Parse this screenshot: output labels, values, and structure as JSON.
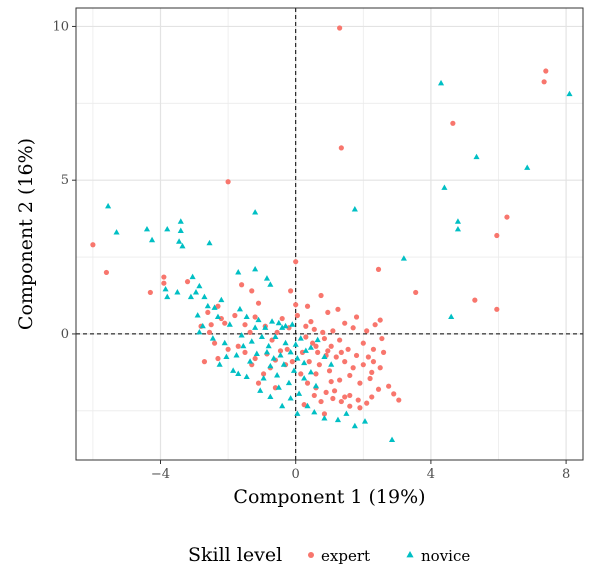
{
  "chart_data": {
    "type": "scatter",
    "title": "",
    "xlabel": "Component 1 (19%)",
    "ylabel": "Component 2 (16%)",
    "xlim": [
      -6.5,
      8.5
    ],
    "ylim": [
      -4.1,
      10.6
    ],
    "x_ticks": [
      -4,
      0,
      4,
      8
    ],
    "y_ticks": [
      0,
      5,
      10
    ],
    "x_tick_labels": [
      "−4",
      "0",
      "4",
      "8"
    ],
    "y_tick_labels": [
      "0",
      "5",
      "10"
    ],
    "grid": true,
    "reference_lines": {
      "x": 0,
      "y": 0,
      "style": "dashed"
    },
    "legend": {
      "title": "Skill level",
      "placement": "bottom"
    },
    "series": [
      {
        "name": "expert",
        "color": "#F8766D",
        "marker": "circle",
        "points": [
          [
            1.3,
            9.95
          ],
          [
            7.4,
            8.55
          ],
          [
            7.35,
            8.2
          ],
          [
            4.65,
            6.85
          ],
          [
            1.35,
            6.05
          ],
          [
            -2.0,
            4.95
          ],
          [
            6.25,
            3.8
          ],
          [
            5.95,
            3.2
          ],
          [
            -6.0,
            2.9
          ],
          [
            -5.6,
            2.0
          ],
          [
            2.45,
            2.1
          ],
          [
            3.55,
            1.35
          ],
          [
            5.3,
            1.1
          ],
          [
            5.95,
            0.8
          ],
          [
            -4.3,
            1.35
          ],
          [
            -3.9,
            1.85
          ],
          [
            -3.9,
            1.65
          ],
          [
            -3.2,
            1.7
          ],
          [
            -1.6,
            1.6
          ],
          [
            -1.3,
            1.4
          ],
          [
            -1.1,
            1.0
          ],
          [
            0.0,
            2.35
          ],
          [
            -0.15,
            1.4
          ],
          [
            0.0,
            0.95
          ],
          [
            0.35,
            0.9
          ],
          [
            0.75,
            1.25
          ],
          [
            0.95,
            0.7
          ],
          [
            1.25,
            0.8
          ],
          [
            1.45,
            0.35
          ],
          [
            1.7,
            0.2
          ],
          [
            2.1,
            0.1
          ],
          [
            2.35,
            0.3
          ],
          [
            2.5,
            0.45
          ],
          [
            2.55,
            -0.15
          ],
          [
            2.3,
            -0.5
          ],
          [
            2.0,
            -0.3
          ],
          [
            1.8,
            -0.7
          ],
          [
            1.55,
            -0.5
          ],
          [
            1.3,
            -0.2
          ],
          [
            1.05,
            -0.4
          ],
          [
            0.85,
            -0.15
          ],
          [
            0.65,
            -0.6
          ],
          [
            0.5,
            -0.3
          ],
          [
            0.3,
            -0.1
          ],
          [
            0.55,
            0.15
          ],
          [
            0.8,
            0.05
          ],
          [
            1.1,
            0.1
          ],
          [
            0.2,
            -0.6
          ],
          [
            0.4,
            -0.9
          ],
          [
            0.7,
            -1.0
          ],
          [
            1.0,
            -1.2
          ],
          [
            1.3,
            -1.5
          ],
          [
            1.6,
            -1.35
          ],
          [
            1.9,
            -1.6
          ],
          [
            2.2,
            -1.45
          ],
          [
            2.45,
            -1.8
          ],
          [
            2.75,
            -1.7
          ],
          [
            2.9,
            -1.95
          ],
          [
            3.05,
            -2.15
          ],
          [
            2.5,
            -1.1
          ],
          [
            2.3,
            -0.9
          ],
          [
            2.0,
            -1.0
          ],
          [
            1.7,
            -1.1
          ],
          [
            1.45,
            -0.9
          ],
          [
            1.2,
            -0.75
          ],
          [
            0.9,
            -0.7
          ],
          [
            0.6,
            -1.3
          ],
          [
            0.35,
            -1.6
          ],
          [
            0.6,
            -1.75
          ],
          [
            0.9,
            -1.9
          ],
          [
            1.1,
            -2.1
          ],
          [
            1.35,
            -2.2
          ],
          [
            1.6,
            -2.35
          ],
          [
            1.85,
            -2.15
          ],
          [
            2.1,
            -2.25
          ],
          [
            1.45,
            -2.05
          ],
          [
            1.15,
            -1.85
          ],
          [
            1.6,
            -2.0
          ],
          [
            1.9,
            -2.4
          ],
          [
            2.25,
            -2.05
          ],
          [
            -2.3,
            0.9
          ],
          [
            -2.6,
            0.7
          ],
          [
            -2.2,
            0.5
          ],
          [
            -2.5,
            0.3
          ],
          [
            -2.1,
            0.35
          ],
          [
            -1.8,
            0.6
          ],
          [
            -1.5,
            0.3
          ],
          [
            -1.2,
            0.55
          ],
          [
            -0.9,
            0.25
          ],
          [
            -2.8,
            0.25
          ],
          [
            -2.4,
            -0.3
          ],
          [
            -2.0,
            -0.5
          ],
          [
            -1.7,
            -0.4
          ],
          [
            -2.7,
            -0.9
          ],
          [
            -2.3,
            -0.8
          ],
          [
            -1.1,
            -1.6
          ],
          [
            -0.95,
            -1.3
          ],
          [
            -0.6,
            -1.75
          ],
          [
            -0.45,
            -0.55
          ],
          [
            -0.25,
            -0.5
          ],
          [
            -0.1,
            -0.9
          ],
          [
            0.15,
            -1.3
          ],
          [
            -0.3,
            -1.0
          ],
          [
            -0.6,
            -0.85
          ],
          [
            -0.85,
            -0.65
          ],
          [
            -1.2,
            -0.8
          ],
          [
            -1.5,
            -0.6
          ],
          [
            -0.7,
            -0.2
          ],
          [
            -0.4,
            0.5
          ],
          [
            0.05,
            0.6
          ],
          [
            -0.2,
            0.2
          ],
          [
            0.55,
            -2.0
          ],
          [
            0.25,
            -2.3
          ],
          [
            0.85,
            -2.6
          ],
          [
            -1.3,
            -1.0
          ],
          [
            -0.75,
            -1.1
          ],
          [
            0.45,
            0.4
          ],
          [
            0.6,
            -0.4
          ],
          [
            0.95,
            -0.55
          ],
          [
            1.35,
            -0.6
          ],
          [
            1.8,
            0.55
          ],
          [
            2.6,
            -0.6
          ],
          [
            2.15,
            -0.75
          ],
          [
            1.05,
            -1.55
          ],
          [
            0.75,
            -2.2
          ],
          [
            -0.55,
            0.05
          ],
          [
            -1.35,
            0.05
          ],
          [
            -2.55,
            0.05
          ],
          [
            0.3,
            0.25
          ],
          [
            2.25,
            -1.25
          ]
        ]
      },
      {
        "name": "novice",
        "color": "#00BFC4",
        "marker": "triangle",
        "points": [
          [
            4.3,
            8.15
          ],
          [
            8.1,
            7.8
          ],
          [
            6.85,
            5.4
          ],
          [
            5.35,
            5.75
          ],
          [
            4.4,
            4.75
          ],
          [
            1.75,
            4.05
          ],
          [
            -1.2,
            3.95
          ],
          [
            -5.55,
            4.15
          ],
          [
            -5.3,
            3.3
          ],
          [
            -4.4,
            3.4
          ],
          [
            -3.8,
            3.4
          ],
          [
            -3.4,
            3.65
          ],
          [
            -3.4,
            3.35
          ],
          [
            -4.25,
            3.05
          ],
          [
            -3.45,
            3.0
          ],
          [
            -3.35,
            2.85
          ],
          [
            -2.55,
            2.95
          ],
          [
            4.8,
            3.65
          ],
          [
            4.8,
            3.4
          ],
          [
            3.2,
            2.45
          ],
          [
            -3.85,
            1.45
          ],
          [
            -3.8,
            1.2
          ],
          [
            -3.5,
            1.35
          ],
          [
            -3.05,
            1.85
          ],
          [
            -2.85,
            1.55
          ],
          [
            -3.1,
            1.2
          ],
          [
            -2.95,
            1.35
          ],
          [
            -1.7,
            2.0
          ],
          [
            -1.2,
            2.1
          ],
          [
            -0.85,
            1.8
          ],
          [
            -0.75,
            1.6
          ],
          [
            4.6,
            0.55
          ],
          [
            2.85,
            -3.45
          ],
          [
            -2.6,
            0.9
          ],
          [
            -2.9,
            0.6
          ],
          [
            -2.3,
            0.55
          ],
          [
            -2.75,
            0.25
          ],
          [
            -2.45,
            -0.15
          ],
          [
            -2.1,
            -0.3
          ],
          [
            -1.95,
            0.3
          ],
          [
            -1.65,
            0.8
          ],
          [
            -1.45,
            0.55
          ],
          [
            -1.2,
            0.2
          ],
          [
            -1.0,
            -0.1
          ],
          [
            -0.8,
            -0.4
          ],
          [
            -0.6,
            -0.1
          ],
          [
            -0.4,
            0.2
          ],
          [
            -0.3,
            -0.3
          ],
          [
            -0.15,
            -0.6
          ],
          [
            0.05,
            -0.8
          ],
          [
            -0.05,
            -1.2
          ],
          [
            -0.35,
            -1.0
          ],
          [
            -0.55,
            -1.35
          ],
          [
            -0.75,
            -1.05
          ],
          [
            -0.95,
            -1.45
          ],
          [
            -1.15,
            -0.65
          ],
          [
            -1.35,
            -0.9
          ],
          [
            -1.55,
            -0.4
          ],
          [
            -1.75,
            -0.7
          ],
          [
            -2.05,
            -0.75
          ],
          [
            -2.25,
            -1.0
          ],
          [
            -1.85,
            -1.2
          ],
          [
            -1.05,
            -1.85
          ],
          [
            -0.75,
            -2.05
          ],
          [
            -0.5,
            -1.75
          ],
          [
            -0.2,
            -1.6
          ],
          [
            0.1,
            -1.95
          ],
          [
            0.35,
            -2.35
          ],
          [
            0.55,
            -2.55
          ],
          [
            0.85,
            -2.75
          ],
          [
            1.25,
            -2.8
          ],
          [
            1.5,
            -2.6
          ],
          [
            1.75,
            -3.0
          ],
          [
            2.05,
            -2.85
          ],
          [
            0.45,
            -1.25
          ],
          [
            0.25,
            -0.95
          ],
          [
            0.45,
            -0.45
          ],
          [
            0.65,
            -0.2
          ],
          [
            0.85,
            -0.75
          ],
          [
            1.05,
            -1.0
          ],
          [
            -0.1,
            0.3
          ],
          [
            -0.3,
            0.25
          ],
          [
            -0.5,
            0.35
          ],
          [
            -0.7,
            0.4
          ],
          [
            -0.9,
            0.2
          ],
          [
            -1.1,
            0.45
          ],
          [
            -1.3,
            -0.25
          ],
          [
            -1.45,
            -1.4
          ],
          [
            -1.7,
            -1.3
          ],
          [
            -2.4,
            0.85
          ],
          [
            -2.7,
            1.2
          ],
          [
            -2.2,
            1.1
          ],
          [
            0.0,
            -0.35
          ],
          [
            0.15,
            -0.15
          ],
          [
            0.3,
            -0.55
          ],
          [
            -0.45,
            -0.7
          ],
          [
            -0.65,
            -0.8
          ],
          [
            -0.85,
            -0.6
          ],
          [
            0.05,
            -2.6
          ],
          [
            -0.15,
            -2.1
          ],
          [
            0.25,
            -1.45
          ],
          [
            0.6,
            -1.7
          ],
          [
            -0.4,
            -2.35
          ],
          [
            -2.85,
            0.05
          ],
          [
            -1.6,
            -0.05
          ]
        ]
      }
    ]
  }
}
